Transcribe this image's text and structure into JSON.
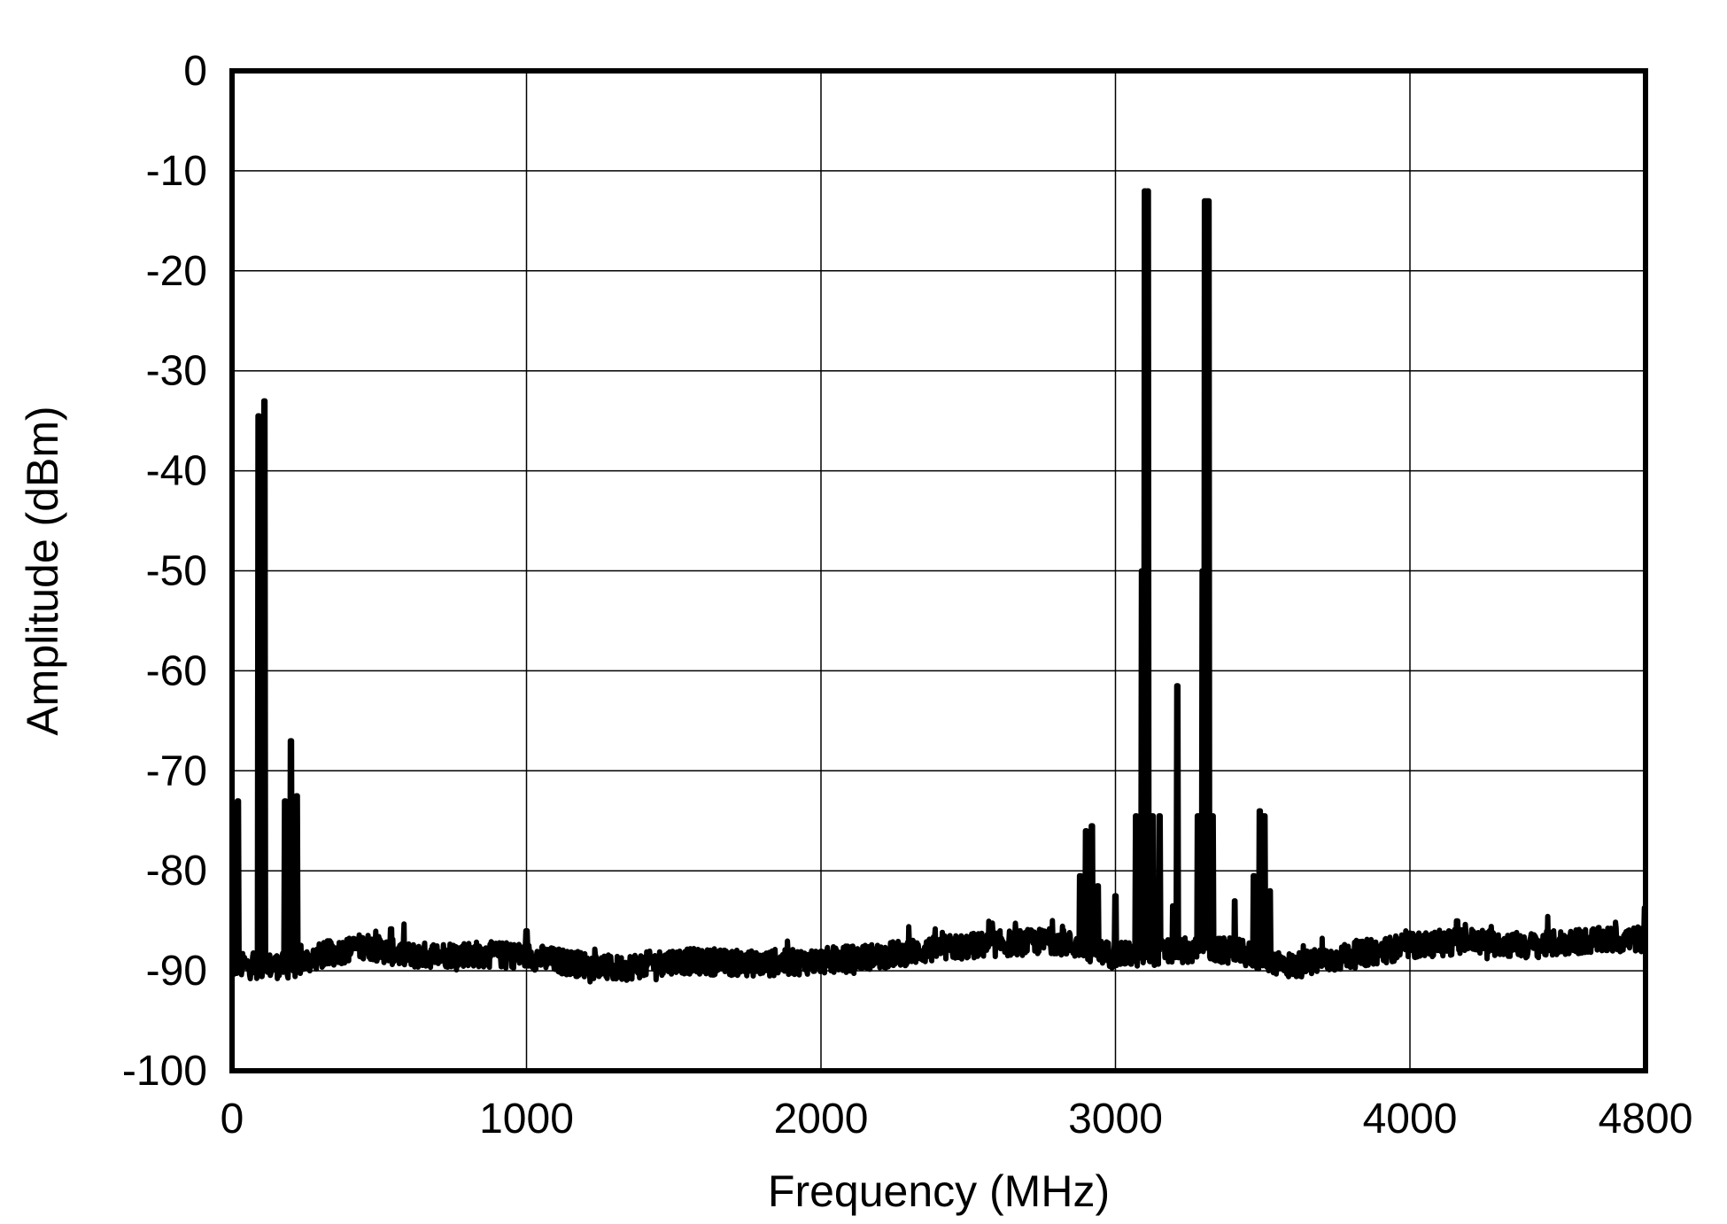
{
  "chart_data": {
    "type": "line",
    "xlabel": "Frequency (MHz)",
    "ylabel": "Amplitude (dBm)",
    "xlim": [
      0,
      4800
    ],
    "ylim": [
      -100,
      0
    ],
    "x_ticks": [
      0,
      1000,
      2000,
      3000,
      4000,
      4800
    ],
    "x_tick_labels": [
      "0",
      "1000",
      "2000",
      "3000",
      "4000",
      "4800"
    ],
    "y_ticks": [
      0,
      -10,
      -20,
      -30,
      -40,
      -50,
      -60,
      -70,
      -80,
      -90,
      -100
    ],
    "y_tick_labels": [
      "0",
      "-10",
      "-20",
      "-30",
      "-40",
      "-50",
      "-60",
      "-70",
      "-80",
      "-90",
      "-100"
    ],
    "grid": true,
    "noise_floor": [
      {
        "x": 0,
        "y": -89.5
      },
      {
        "x": 200,
        "y": -89.5
      },
      {
        "x": 300,
        "y": -88.5
      },
      {
        "x": 450,
        "y": -87.5
      },
      {
        "x": 600,
        "y": -88.5
      },
      {
        "x": 800,
        "y": -88.3
      },
      {
        "x": 1000,
        "y": -88.5
      },
      {
        "x": 1100,
        "y": -89.0
      },
      {
        "x": 1300,
        "y": -89.8
      },
      {
        "x": 1500,
        "y": -89.0
      },
      {
        "x": 1800,
        "y": -89.3
      },
      {
        "x": 2000,
        "y": -89.0
      },
      {
        "x": 2200,
        "y": -88.5
      },
      {
        "x": 2400,
        "y": -87.8
      },
      {
        "x": 2600,
        "y": -87.3
      },
      {
        "x": 2800,
        "y": -87.0
      },
      {
        "x": 3000,
        "y": -88.5
      },
      {
        "x": 3200,
        "y": -88.0
      },
      {
        "x": 3400,
        "y": -88.0
      },
      {
        "x": 3600,
        "y": -89.5
      },
      {
        "x": 3800,
        "y": -88.5
      },
      {
        "x": 4000,
        "y": -87.5
      },
      {
        "x": 4200,
        "y": -87.0
      },
      {
        "x": 4400,
        "y": -87.5
      },
      {
        "x": 4600,
        "y": -87.0
      },
      {
        "x": 4800,
        "y": -86.8
      }
    ],
    "spurs": [
      {
        "x": 20,
        "y": -73,
        "width": 6
      },
      {
        "x": 90,
        "y": -34.5,
        "width": 6
      },
      {
        "x": 110,
        "y": -33,
        "width": 6
      },
      {
        "x": 180,
        "y": -73,
        "width": 4
      },
      {
        "x": 200,
        "y": -67,
        "width": 5
      },
      {
        "x": 220,
        "y": -72.5,
        "width": 5
      },
      {
        "x": 325,
        "y": -87,
        "width": 3
      },
      {
        "x": 540,
        "y": -85.8,
        "width": 3
      },
      {
        "x": 1000,
        "y": -86,
        "width": 3
      },
      {
        "x": 2880,
        "y": -80.5,
        "width": 5
      },
      {
        "x": 2900,
        "y": -76,
        "width": 5
      },
      {
        "x": 2920,
        "y": -75.5,
        "width": 5
      },
      {
        "x": 2940,
        "y": -81.5,
        "width": 4
      },
      {
        "x": 3000,
        "y": -82.5,
        "width": 4
      },
      {
        "x": 3070,
        "y": -74.5,
        "width": 5
      },
      {
        "x": 3090,
        "y": -50,
        "width": 4
      },
      {
        "x": 3100,
        "y": -12,
        "width": 5
      },
      {
        "x": 3110,
        "y": -12,
        "width": 5
      },
      {
        "x": 3125,
        "y": -74.5,
        "width": 5
      },
      {
        "x": 3150,
        "y": -74.5,
        "width": 5
      },
      {
        "x": 3195,
        "y": -83.5,
        "width": 4
      },
      {
        "x": 3210,
        "y": -61.5,
        "width": 4
      },
      {
        "x": 3280,
        "y": -74.5,
        "width": 5
      },
      {
        "x": 3295,
        "y": -50,
        "width": 4
      },
      {
        "x": 3305,
        "y": -13,
        "width": 5
      },
      {
        "x": 3315,
        "y": -13,
        "width": 5
      },
      {
        "x": 3330,
        "y": -74.5,
        "width": 5
      },
      {
        "x": 3405,
        "y": -83,
        "width": 4
      },
      {
        "x": 3470,
        "y": -80.5,
        "width": 5
      },
      {
        "x": 3490,
        "y": -74,
        "width": 5
      },
      {
        "x": 3505,
        "y": -74.5,
        "width": 5
      },
      {
        "x": 3525,
        "y": -82,
        "width": 4
      },
      {
        "x": 4160,
        "y": -85,
        "width": 3
      }
    ]
  }
}
